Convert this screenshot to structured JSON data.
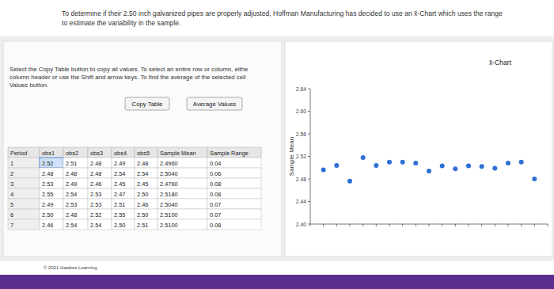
{
  "header": {
    "lines": [
      "To determine if their 2.50 inch galvanized pipes are properly adjusted, Hoffman Manufacturing has decided to use an x̄-Chart which uses the range",
      "to estimate the variability in the sample."
    ]
  },
  "instructions": [
    "Select the Copy Table button to copy all values. To select an entire row or column, eithe",
    "column header or use the Shift and arrow keys. To find the average of the selected cell",
    "Values button."
  ],
  "buttons": [
    "Copy Table",
    "Average Values"
  ],
  "table": {
    "columns": [
      "Period",
      "obs1",
      "obs2",
      "obs3",
      "obs4",
      "obs5",
      "Sample Mean",
      "Sample Range"
    ],
    "rows": [
      [
        "1",
        "2.52",
        "2.51",
        "2.48",
        "2.49",
        "2.48",
        "2.4960",
        "0.04"
      ],
      [
        "2",
        "2.48",
        "2.48",
        "2.48",
        "2.54",
        "2.54",
        "2.5040",
        "0.06"
      ],
      [
        "3",
        "2.53",
        "2.49",
        "2.46",
        "2.45",
        "2.45",
        "2.4760",
        "0.08"
      ],
      [
        "4",
        "2.55",
        "2.54",
        "2.53",
        "2.47",
        "2.50",
        "2.5180",
        "0.08"
      ],
      [
        "5",
        "2.49",
        "2.53",
        "2.53",
        "2.51",
        "2.46",
        "2.5040",
        "0.07"
      ],
      [
        "6",
        "2.50",
        "2.48",
        "2.52",
        "2.55",
        "2.50",
        "2.5100",
        "0.07"
      ],
      [
        "7",
        "2.46",
        "2.54",
        "2.54",
        "2.50",
        "2.51",
        "2.5100",
        "0.08"
      ]
    ]
  },
  "footer": "© 2021 Hawkes Learning",
  "chart_data": {
    "type": "scatter",
    "title": "x̄-Chart",
    "y_label": "Sample Mean",
    "x": [
      1,
      2,
      3,
      4,
      5,
      6,
      7,
      8,
      9,
      10,
      11,
      12,
      13,
      14,
      15,
      16,
      17
    ],
    "values": [
      2.496,
      2.504,
      2.476,
      2.518,
      2.504,
      2.51,
      2.51,
      2.508,
      2.494,
      2.503,
      2.498,
      2.503,
      2.502,
      2.499,
      2.508,
      2.51,
      2.48
    ],
    "color": "#2f6fd6",
    "marker": "circle",
    "xlim": [
      0,
      18
    ],
    "xticks": [
      0,
      1,
      2,
      3,
      4,
      5,
      6,
      7,
      8,
      9,
      10,
      11,
      12,
      13,
      14,
      15,
      16,
      17,
      18
    ],
    "ylim": [
      2.4,
      2.64
    ],
    "yticks": [
      {
        "value": 2.4,
        "label": "2.40"
      },
      2.44,
      2.48,
      2.52,
      2.56,
      {
        "value": 2.6,
        "label": "2.60"
      },
      2.64
    ],
    "grid": false,
    "tick_labels": "y"
  }
}
